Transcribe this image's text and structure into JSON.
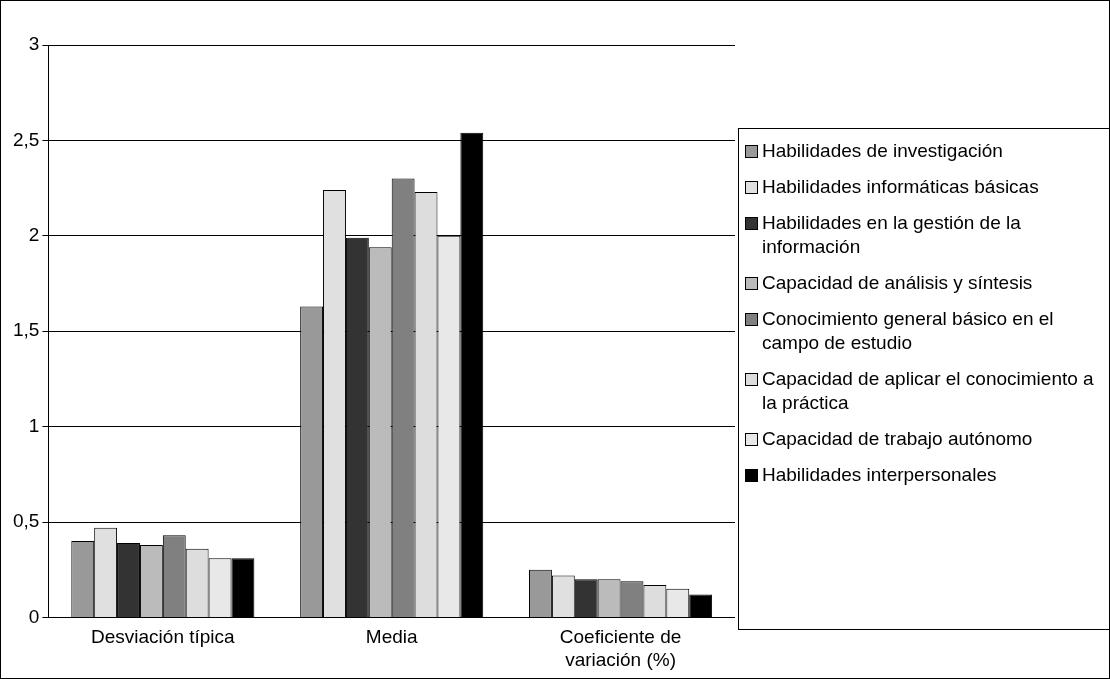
{
  "chart_data": {
    "type": "bar",
    "categories": [
      "Desviación típica",
      "Media",
      "Coeficiente de variación (%)"
    ],
    "series": [
      {
        "name": "Habilidades de investigación",
        "color": "#999999",
        "values": [
          0.4,
          1.63,
          0.25
        ]
      },
      {
        "name": "Habilidades informáticas básicas",
        "color": "#e0e0e0",
        "values": [
          0.47,
          2.24,
          0.22
        ]
      },
      {
        "name": "Habilidades en la gestión de la información",
        "color": "#333333",
        "values": [
          0.39,
          1.99,
          0.2
        ]
      },
      {
        "name": "Capacidad de análisis y síntesis",
        "color": "#bbbbbb",
        "values": [
          0.38,
          1.94,
          0.2
        ]
      },
      {
        "name": "Conocimiento general básico en el campo de estudio",
        "color": "#808080",
        "values": [
          0.43,
          2.3,
          0.19
        ]
      },
      {
        "name": "Capacidad de aplicar el conocimiento a la práctica",
        "color": "#dddddd",
        "values": [
          0.36,
          2.23,
          0.17
        ]
      },
      {
        "name": "Capacidad de trabajo autónomo",
        "color": "#e8e8e8",
        "values": [
          0.31,
          2.0,
          0.15
        ]
      },
      {
        "name": "Habilidades interpersonales",
        "color": "#000000",
        "values": [
          0.31,
          2.54,
          0.12
        ]
      }
    ],
    "ylim": [
      0,
      3
    ],
    "yticks": [
      0,
      {
        "value": 0.5,
        "label": "0,5"
      },
      1,
      {
        "value": 1.5,
        "label": "1,5"
      },
      2,
      {
        "value": 2.5,
        "label": "2,5"
      },
      3
    ],
    "grid": "y",
    "legend": "right"
  }
}
